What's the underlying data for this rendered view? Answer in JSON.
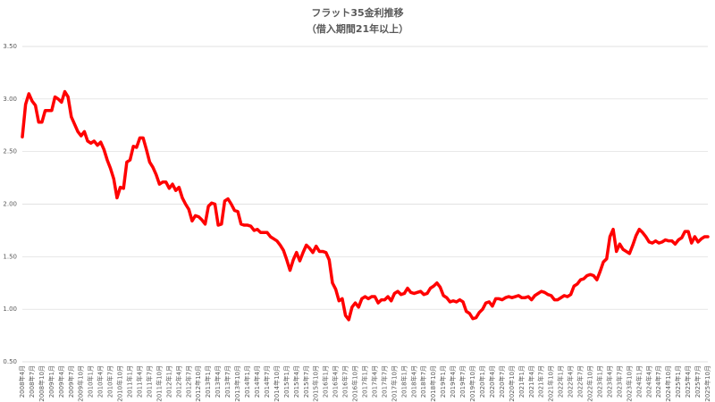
{
  "chart_data": {
    "type": "line",
    "title": "フラット35金利推移",
    "subtitle": "（借入期間21年以上）",
    "categories": [
      "2008年4月",
      null,
      null,
      "2008年7月",
      null,
      null,
      "2008年10月",
      null,
      null,
      "2009年1月",
      null,
      null,
      "2009年4月",
      null,
      null,
      "2009年7月",
      null,
      null,
      "2009年10月",
      null,
      null,
      "2010年1月",
      null,
      null,
      "2010年4月",
      null,
      null,
      "2010年7月",
      null,
      null,
      "2010年10月",
      null,
      null,
      "2011年1月",
      null,
      null,
      "2011年4月",
      null,
      null,
      "2011年7月",
      null,
      null,
      "2011年10月",
      null,
      null,
      "2012年1月",
      null,
      null,
      "2012年4月",
      null,
      null,
      "2012年7月",
      null,
      null,
      "2012年10月",
      null,
      null,
      "2013年1月",
      null,
      null,
      "2013年4月",
      null,
      null,
      "2013年7月",
      null,
      null,
      "2013年10月",
      null,
      null,
      "2014年1月",
      null,
      null,
      "2014年4月",
      null,
      null,
      "2014年7月",
      null,
      null,
      "2014年10月",
      null,
      null,
      "2015年1月",
      null,
      null,
      "2015年4月",
      null,
      null,
      "2015年7月",
      null,
      null,
      "2015年10月",
      null,
      null,
      "2016年1月",
      null,
      null,
      "2016年4月",
      null,
      null,
      "2016年7月",
      null,
      null,
      "2016年10月",
      null,
      null,
      "2017年1月",
      null,
      null,
      "2017年4月",
      null,
      null,
      "2017年7月",
      null,
      null,
      "2017年10月",
      null,
      null,
      "2018年1月",
      null,
      null,
      "2018年4月",
      null,
      null,
      "2018年7月",
      null,
      null,
      "2018年10月",
      null,
      null,
      "2019年1月",
      null,
      null,
      "2019年4月",
      null,
      null,
      "2019年7月",
      null,
      null,
      "2019年10月",
      null,
      null,
      "2020年1月",
      null,
      null,
      "2020年4月",
      null,
      null,
      "2020年7月",
      null,
      null,
      "2020年10月",
      null,
      null,
      "2021年1月",
      null,
      null,
      "2021年4月",
      null,
      null,
      "2021年7月",
      null,
      null,
      "2021年10月",
      null,
      null,
      "2022年1月",
      null,
      null,
      "2022年4月",
      null,
      null,
      "2022年7月",
      null,
      null,
      "2022年10月",
      null,
      null,
      "2023年1月",
      null,
      null,
      "2023年4月",
      null,
      null,
      "2023年7月",
      null,
      null,
      "2023年10月",
      null,
      null,
      "2024年1月",
      null,
      null,
      "2024年4月",
      null,
      null,
      "2024年7月",
      null,
      null,
      "2024年10月",
      null,
      null,
      "2025年1月",
      null,
      null,
      "2025年4月",
      null,
      null,
      "2025年7月",
      null,
      null,
      "2025年10月"
    ],
    "values": [
      2.64,
      2.95,
      3.05,
      2.98,
      2.94,
      2.78,
      2.78,
      2.89,
      2.89,
      2.89,
      3.02,
      3.0,
      2.97,
      3.07,
      3.02,
      2.83,
      2.76,
      2.69,
      2.65,
      2.69,
      2.6,
      2.58,
      2.6,
      2.56,
      2.59,
      2.52,
      2.42,
      2.34,
      2.24,
      2.06,
      2.16,
      2.15,
      2.4,
      2.42,
      2.55,
      2.54,
      2.63,
      2.63,
      2.52,
      2.4,
      2.35,
      2.28,
      2.19,
      2.21,
      2.21,
      2.15,
      2.19,
      2.13,
      2.16,
      2.06,
      2.0,
      1.95,
      1.84,
      1.89,
      1.88,
      1.85,
      1.81,
      1.98,
      2.01,
      2.0,
      1.8,
      1.81,
      2.03,
      2.05,
      2.0,
      1.94,
      1.93,
      1.81,
      1.8,
      1.8,
      1.79,
      1.75,
      1.76,
      1.73,
      1.73,
      1.73,
      1.69,
      1.67,
      1.65,
      1.61,
      1.56,
      1.47,
      1.37,
      1.47,
      1.54,
      1.46,
      1.54,
      1.61,
      1.58,
      1.54,
      1.6,
      1.55,
      1.55,
      1.54,
      1.47,
      1.25,
      1.19,
      1.08,
      1.1,
      0.94,
      0.9,
      1.02,
      1.06,
      1.02,
      1.1,
      1.12,
      1.1,
      1.12,
      1.12,
      1.06,
      1.09,
      1.09,
      1.12,
      1.08,
      1.15,
      1.17,
      1.14,
      1.15,
      1.2,
      1.16,
      1.15,
      1.16,
      1.17,
      1.14,
      1.15,
      1.2,
      1.22,
      1.25,
      1.21,
      1.13,
      1.11,
      1.07,
      1.08,
      1.07,
      1.09,
      1.07,
      0.98,
      0.96,
      0.91,
      0.92,
      0.97,
      1.0,
      1.06,
      1.07,
      1.03,
      1.1,
      1.1,
      1.09,
      1.11,
      1.12,
      1.11,
      1.12,
      1.13,
      1.11,
      1.11,
      1.12,
      1.09,
      1.13,
      1.15,
      1.17,
      1.16,
      1.14,
      1.13,
      1.09,
      1.09,
      1.11,
      1.13,
      1.12,
      1.14,
      1.22,
      1.24,
      1.28,
      1.29,
      1.32,
      1.33,
      1.32,
      1.28,
      1.36,
      1.45,
      1.48,
      1.69,
      1.76,
      1.55,
      1.62,
      1.57,
      1.55,
      1.53,
      1.61,
      1.7,
      1.76,
      1.73,
      1.69,
      1.64,
      1.63,
      1.65,
      1.63,
      1.64,
      1.66,
      1.65,
      1.65,
      1.62,
      1.66,
      1.68,
      1.74,
      1.74,
      1.63,
      1.69,
      1.64,
      1.67,
      1.69,
      1.69
    ],
    "color": "#ff0000",
    "ylim": [
      0.5,
      3.5
    ],
    "yticks": [
      {
        "value": 0.5,
        "label": "0.50"
      },
      {
        "value": 1,
        "label": "1.00"
      },
      {
        "value": 1.5,
        "label": "1.50"
      },
      {
        "value": 2,
        "label": "2.00"
      },
      {
        "value": 2.5,
        "label": "2.50"
      },
      {
        "value": 3,
        "label": "3.00"
      },
      {
        "value": 3.5,
        "label": "3.50"
      }
    ],
    "grid": true
  }
}
